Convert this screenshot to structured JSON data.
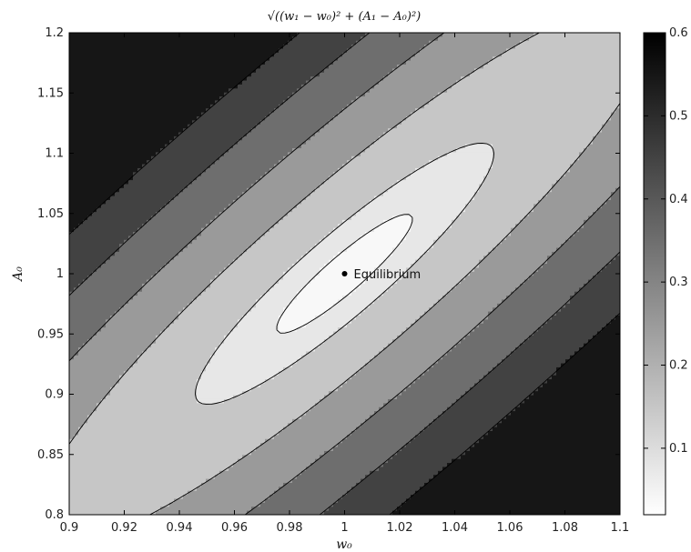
{
  "chart_data": {
    "type": "contour",
    "title": "√((w₁ − w₀)² + (A₁ − A₀)²)",
    "xlabel": "w₀",
    "ylabel": "A₀",
    "xlim": [
      0.9,
      1.1
    ],
    "ylim": [
      0.8,
      1.2
    ],
    "x_ticks": [
      0.9,
      0.92,
      0.94,
      0.96,
      0.98,
      1,
      1.02,
      1.04,
      1.06,
      1.08,
      1.1
    ],
    "y_ticks": [
      0.8,
      0.85,
      0.9,
      0.95,
      1,
      1.05,
      1.1,
      1.15,
      1.2
    ],
    "colorbar": {
      "range": [
        0.02,
        0.6
      ],
      "ticks": [
        0.1,
        0.2,
        0.3,
        0.4,
        0.5,
        0.6
      ],
      "colormap": "gray_reversed"
    },
    "contour_levels": [
      0.02,
      0.05,
      0.1,
      0.2,
      0.3,
      0.4,
      0.5
    ],
    "annotation": {
      "label": "Equilibrium",
      "x": 1.0,
      "y": 1.0
    },
    "grid": false
  }
}
